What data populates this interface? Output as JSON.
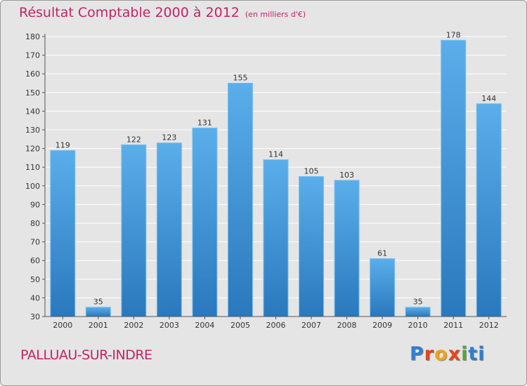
{
  "chart_data": {
    "type": "bar",
    "title": "Résultat Comptable 2000 à 2012",
    "subtitle": "(en milliers d'€)",
    "categories": [
      "2000",
      "2001",
      "2002",
      "2003",
      "2004",
      "2005",
      "2006",
      "2007",
      "2008",
      "2009",
      "2010",
      "2011",
      "2012"
    ],
    "values": [
      119,
      35,
      122,
      123,
      131,
      155,
      114,
      105,
      103,
      61,
      35,
      178,
      144
    ],
    "ylim": [
      30,
      180
    ],
    "yticks": [
      30,
      40,
      50,
      60,
      70,
      80,
      90,
      100,
      110,
      120,
      130,
      140,
      150,
      160,
      170,
      180
    ],
    "grid": true,
    "xlabel": "",
    "ylabel": ""
  },
  "commune": "PALLUAU-SUR-INDRE",
  "logo": {
    "letters": [
      "P",
      "r",
      "o",
      "x",
      "i",
      "ti"
    ]
  },
  "colors": {
    "title": "#c0246a",
    "bar_top": "#5aaeea",
    "bar_bottom": "#2a78bd",
    "background": "#e5e5e5"
  }
}
